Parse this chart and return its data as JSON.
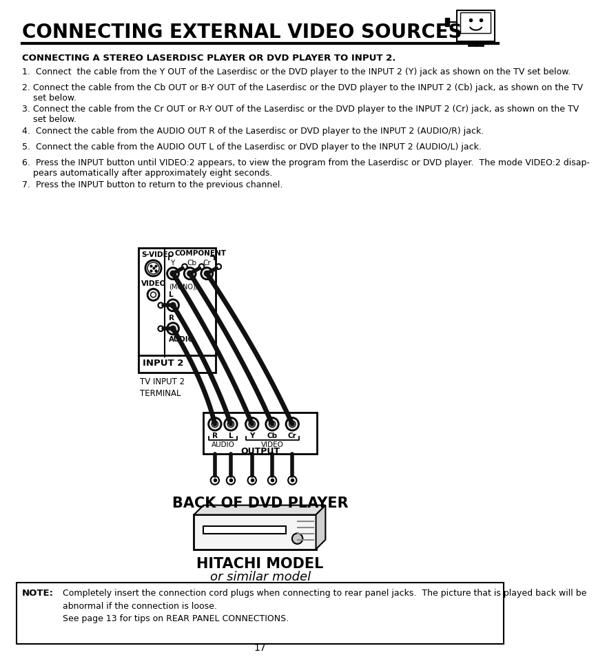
{
  "title": "CONNECTING EXTERNAL VIDEO SOURCES",
  "subtitle": "CONNECTING A STEREO LASERDISC PLAYER OR DVD PLAYER TO INPUT 2.",
  "instructions": [
    "1.  Connect  the cable from the Y OUT of the Laserdisc or the DVD player to the INPUT 2 (Y) jack as shown on the TV set below.",
    "2. Connect the cable from the Cb OUT or B-Y OUT of the Laserdisc or the DVD player to the INPUT 2 (Cb) jack, as shown on the TV\n    set below.",
    "3. Connect the cable from the Cr OUT or R-Y OUT of the Laserdisc or the DVD player to the INPUT 2 (Cr) jack, as shown on the TV\n    set below.",
    "4.  Connect the cable from the AUDIO OUT R of the Laserdisc or DVD player to the INPUT 2 (AUDIO/R) jack.",
    "5.  Connect the cable from the AUDIO OUT L of the Laserdisc or DVD player to the INPUT 2 (AUDIO/L) jack.",
    "6.  Press the INPUT button until VIDEO:2 appears, to view the program from the Laserdisc or DVD player.  The mode VIDEO:2 disap-\n    pears automatically after approximately eight seconds.",
    "7.  Press the INPUT button to return to the previous channel."
  ],
  "note_label": "NOTE:",
  "note_text1": "Completely insert the connection cord plugs when connecting to rear panel jacks.  The picture that is played back will be\nabnormal if the connection is loose.",
  "note_text2": "See page 13 for tips on REAR PANEL CONNECTIONS.",
  "page_number": "17",
  "back_of_dvd_label": "BACK OF DVD PLAYER",
  "hitachi_label1": "HITACHI MODEL",
  "hitachi_label2": "or similar model",
  "bg_color": "#ffffff",
  "text_color": "#000000"
}
